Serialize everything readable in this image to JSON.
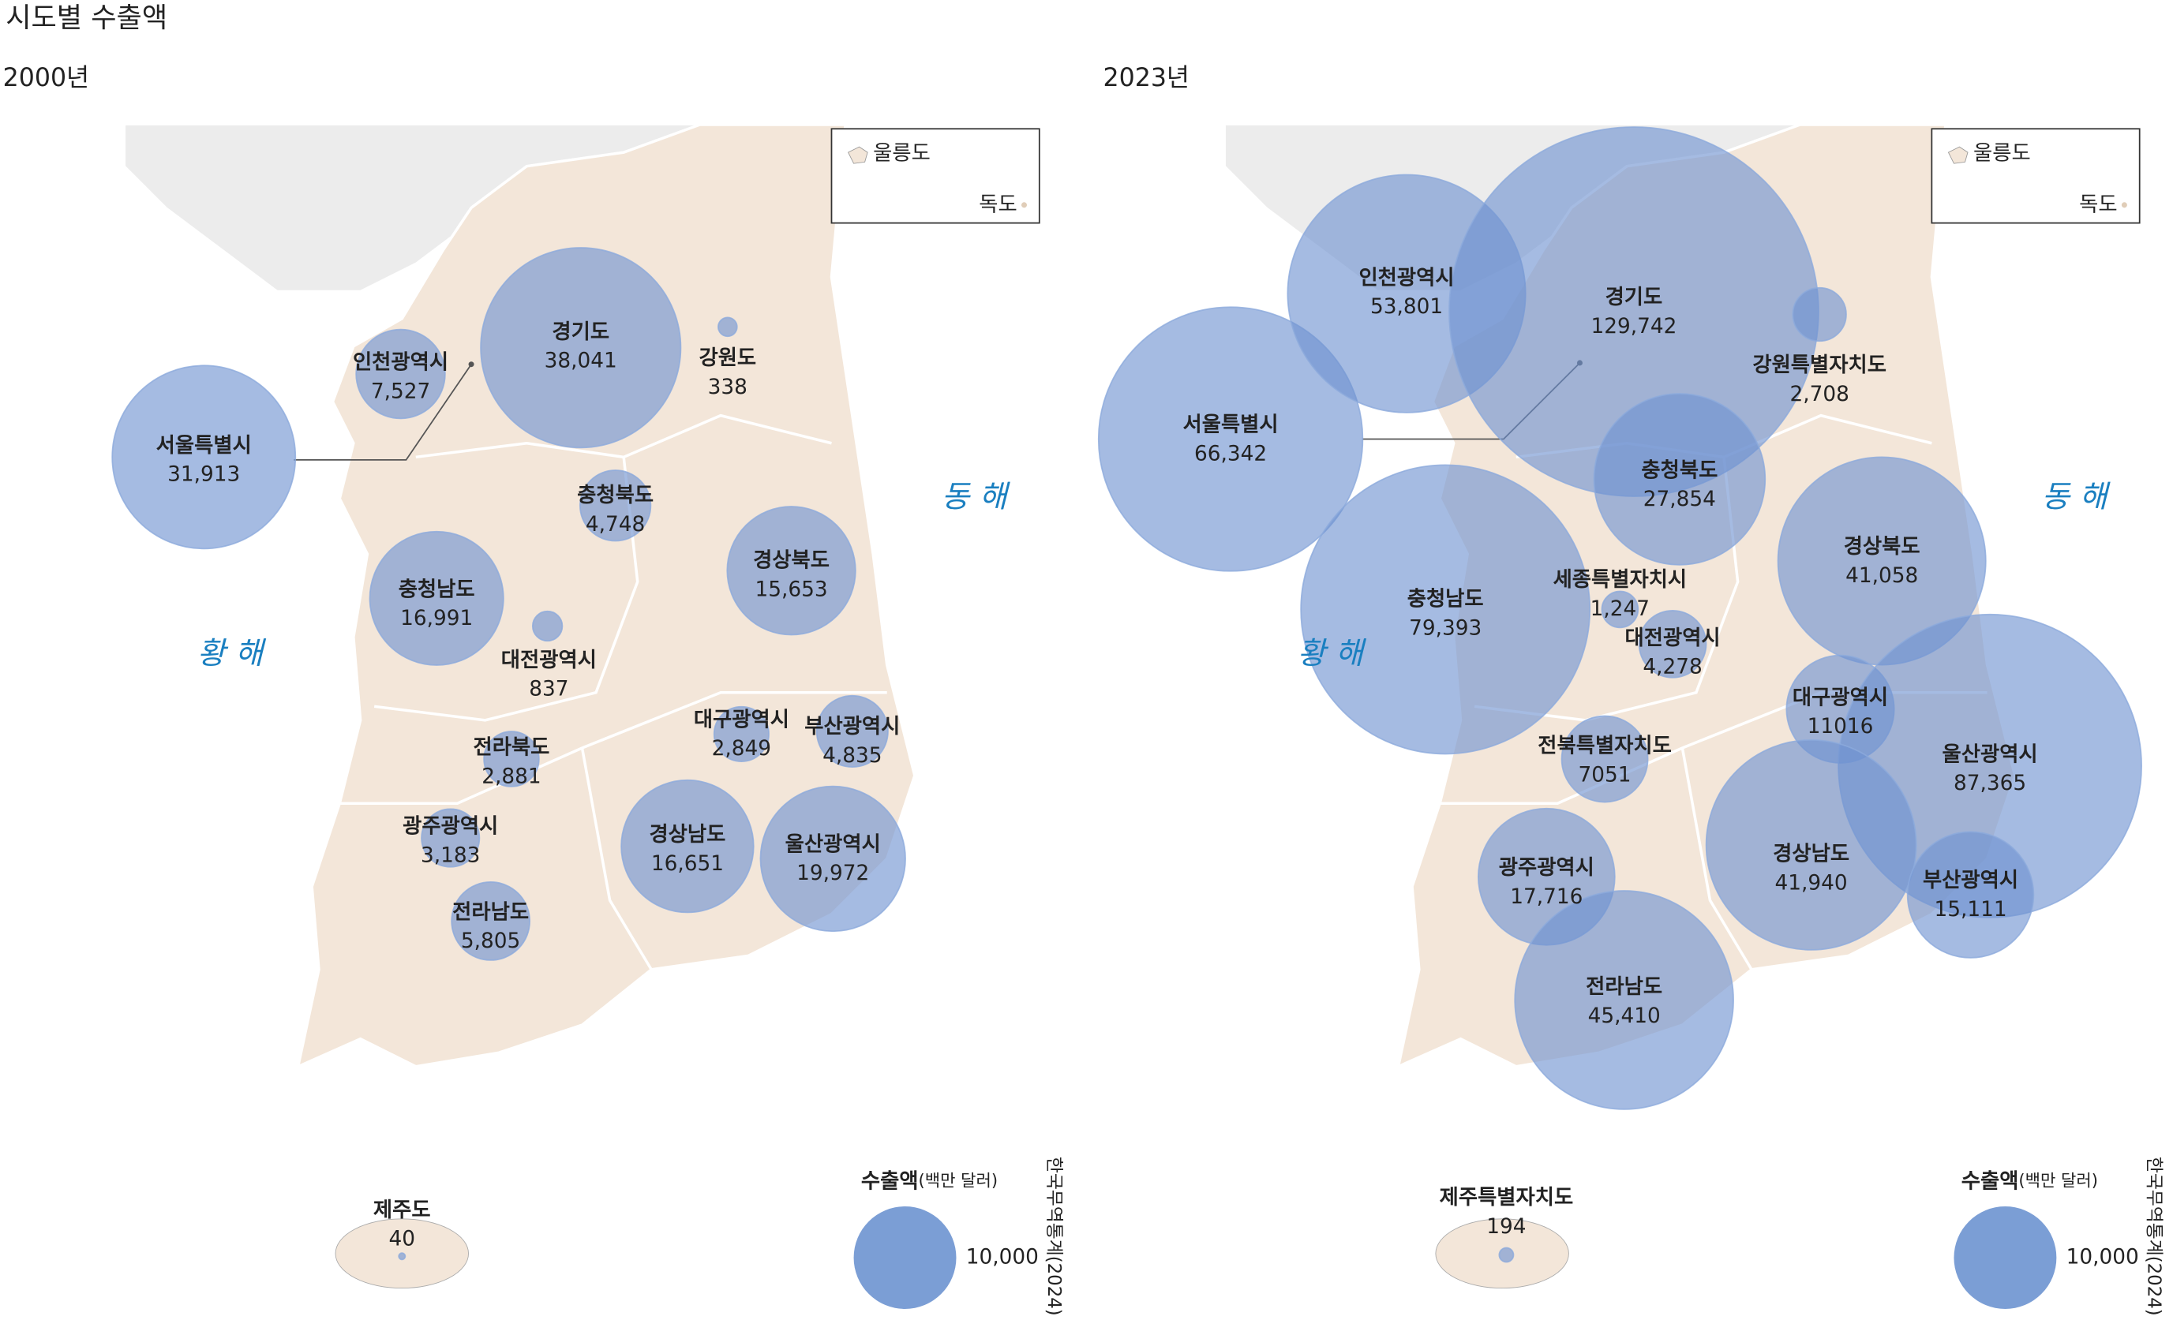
{
  "title": "시도별 수출액",
  "maps": [
    {
      "year": "2000년",
      "seas": [
        "동 해",
        "황 해"
      ],
      "islands": [
        "울릉도",
        "독도"
      ],
      "legend": {
        "title": "수출액",
        "unit": "(백만 달러)",
        "value": 10000,
        "value_label": "10,000"
      },
      "source": "한국무역통계(2024)",
      "regions": [
        {
          "name": "서울특별시",
          "value": 31913,
          "value_label": "31,913"
        },
        {
          "name": "인천광역시",
          "value": 7527,
          "value_label": "7,527"
        },
        {
          "name": "경기도",
          "value": 38041,
          "value_label": "38,041"
        },
        {
          "name": "강원도",
          "value": 338
        },
        {
          "name": "충청북도",
          "value": 4748,
          "value_label": "4,748"
        },
        {
          "name": "충청남도",
          "value": 16991,
          "value_label": "16,991"
        },
        {
          "name": "대전광역시",
          "value": 837
        },
        {
          "name": "경상북도",
          "value": 15653,
          "value_label": "15,653"
        },
        {
          "name": "대구광역시",
          "value": 2849,
          "value_label": "2,849"
        },
        {
          "name": "부산광역시",
          "value": 4835,
          "value_label": "4,835"
        },
        {
          "name": "전라북도",
          "value": 2881,
          "value_label": "2,881"
        },
        {
          "name": "광주광역시",
          "value": 3183,
          "value_label": "3,183"
        },
        {
          "name": "경상남도",
          "value": 16651,
          "value_label": "16,651"
        },
        {
          "name": "울산광역시",
          "value": 19972,
          "value_label": "19,972"
        },
        {
          "name": "전라남도",
          "value": 5805,
          "value_label": "5,805"
        },
        {
          "name": "제주도",
          "value": 40
        }
      ]
    },
    {
      "year": "2023년",
      "seas": [
        "동 해",
        "황 해"
      ],
      "islands": [
        "울릉도",
        "독도"
      ],
      "legend": {
        "title": "수출액",
        "unit": "(백만 달러)",
        "value": 10000,
        "value_label": "10,000"
      },
      "source": "한국무역통계(2024)",
      "regions": [
        {
          "name": "서울특별시",
          "value": 66342,
          "value_label": "66,342"
        },
        {
          "name": "인천광역시",
          "value": 53801,
          "value_label": "53,801"
        },
        {
          "name": "경기도",
          "value": 129742,
          "value_label": "129,742"
        },
        {
          "name": "강원특별자치도",
          "value": 2708,
          "value_label": "2,708"
        },
        {
          "name": "충청북도",
          "value": 27854,
          "value_label": "27,854"
        },
        {
          "name": "충청남도",
          "value": 79393,
          "value_label": "79,393"
        },
        {
          "name": "세종특별자치시",
          "value": 1247,
          "value_label": "1,247"
        },
        {
          "name": "대전광역시",
          "value": 4278,
          "value_label": "4,278"
        },
        {
          "name": "경상북도",
          "value": 41058,
          "value_label": "41,058"
        },
        {
          "name": "대구광역시",
          "value": 11016
        },
        {
          "name": "울산광역시",
          "value": 87365,
          "value_label": "87,365"
        },
        {
          "name": "전북특별자치도",
          "value": 7051
        },
        {
          "name": "광주광역시",
          "value": 17716,
          "value_label": "17,716"
        },
        {
          "name": "경상남도",
          "value": 41940,
          "value_label": "41,940"
        },
        {
          "name": "부산광역시",
          "value": 15111,
          "value_label": "15,111"
        },
        {
          "name": "전라남도",
          "value": 45410,
          "value_label": "45,410"
        },
        {
          "name": "제주특별자치도",
          "value": 194
        }
      ]
    }
  ]
}
